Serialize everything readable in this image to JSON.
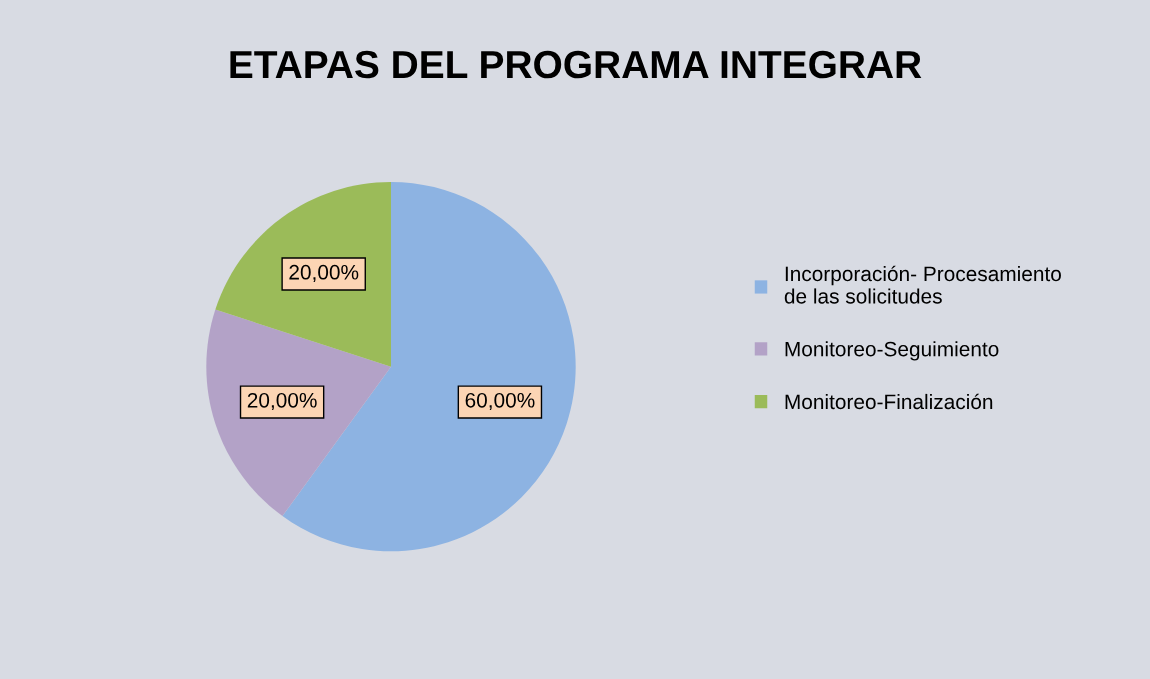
{
  "chart_data": {
    "type": "pie",
    "title": "ETAPAS DEL PROGRAMA INTEGRAR",
    "categories": [
      "Incorporación- Procesamiento de las solicitudes",
      "Monitoreo-Seguimiento",
      "Monitoreo-Finalización"
    ],
    "values": [
      60,
      20,
      20
    ],
    "colors": [
      "#8db3e2",
      "#b3a2c7",
      "#9bbb59"
    ],
    "value_labels": [
      "60,00%",
      "20,00%",
      "20,00%"
    ],
    "legend": "right"
  }
}
